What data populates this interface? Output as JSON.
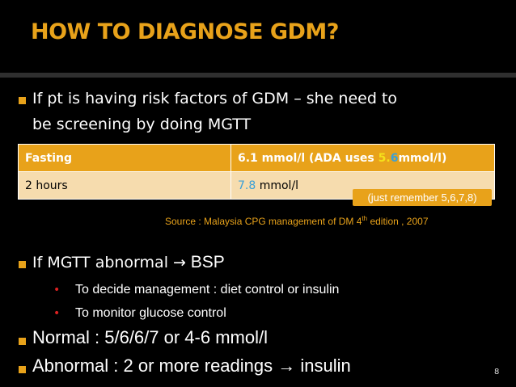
{
  "title": "HOW TO DIAGNOSE GDM?",
  "bullet1": {
    "line1": "If pt is having risk factors of GDM – she need to",
    "line2": "be screening by doing MGTT"
  },
  "table": {
    "row1": {
      "label": "Fasting",
      "value": "6.1 mmol/l   (ADA uses ",
      "highlight_a": "5.",
      "highlight_b": "6",
      "value_end": "mmol/l)"
    },
    "row2": {
      "label": "2 hours",
      "value_blue": "7.8",
      "value_unit": " mmol/l"
    }
  },
  "hint": "(just remember 5,6,7,8)",
  "source": {
    "text": "Source : Malaysia CPG  management of DM 4",
    "sup": "th",
    "tail": " edition , 2007"
  },
  "bullet2": {
    "prefix": "If MGTT abnormal ",
    "arrow": "→",
    "suffix": " BSP"
  },
  "sub_bullets": [
    "To decide management : diet control or insulin",
    "To monitor glucose control"
  ],
  "bullet3": "Normal : 5/6/6/7   or  4-6 mmol/l",
  "bullet4": "Abnormal : 2 or more readings → insulin",
  "page_number": "8",
  "colors": {
    "accent": "#e8a21a",
    "highlight_yellow": "#f5e11a",
    "highlight_blue": "#3aa0d8",
    "sub_bullet": "#dd2222"
  }
}
